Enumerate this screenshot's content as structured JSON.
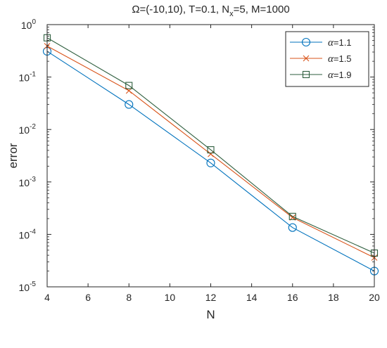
{
  "chart_data": {
    "type": "line",
    "title": {
      "prefix": "Ω=(-10,10), T=0.1, N",
      "subscript": "x",
      "suffix": "=5, M=1000"
    },
    "xlabel": "N",
    "ylabel": "error",
    "x": [
      4,
      8,
      12,
      16,
      20
    ],
    "xlim": [
      4,
      20
    ],
    "xticks": [
      4,
      6,
      8,
      10,
      12,
      14,
      16,
      18,
      20
    ],
    "y_scale": "log",
    "ylim": [
      1e-05,
      1
    ],
    "ytick_exponents": [
      -5,
      -4,
      -3,
      -2,
      -1,
      0
    ],
    "ytick_base": "10",
    "grid": false,
    "legend_position": "top-right",
    "series": [
      {
        "name_symbol": "α",
        "name_suffix": "=1.1",
        "color": "#0072BD",
        "marker": "circle",
        "values": [
          0.31,
          0.03,
          0.0023,
          0.000135,
          2e-05
        ]
      },
      {
        "name_symbol": "α",
        "name_suffix": "=1.5",
        "color": "#D95319",
        "marker": "x",
        "values": [
          0.39,
          0.055,
          0.0034,
          0.00021,
          3.6e-05
        ]
      },
      {
        "name_symbol": "α",
        "name_suffix": "=1.9",
        "color": "#2E5E3E",
        "marker": "square",
        "values": [
          0.56,
          0.069,
          0.0041,
          0.00022,
          4.4e-05
        ]
      }
    ]
  }
}
